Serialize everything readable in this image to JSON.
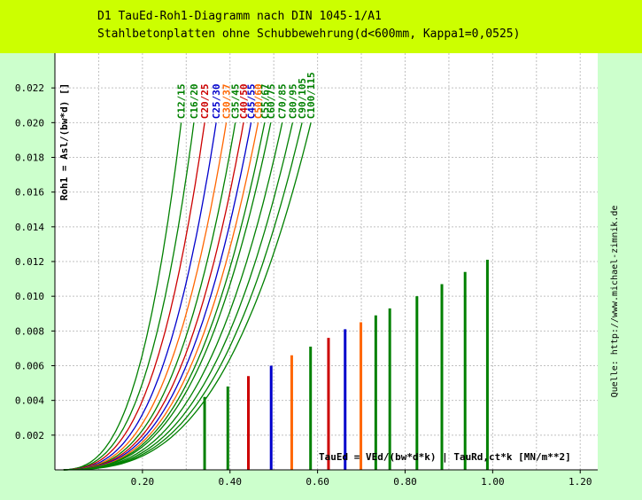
{
  "header": {
    "line1": "D1 TauEd-Roh1-Diagramm nach DIN 1045-1/A1",
    "line2": "Stahlbetonplatten ohne Schubbewehrung(d<600mm, Kappa1=0,0525)"
  },
  "source_note": "Quelle: http://www.michael-zimnik.de",
  "colors": {
    "header_bg": "#ccff00",
    "side_bg": "#ccffcc",
    "plot_bg": "#ffffff",
    "grid": "#c0c0c0",
    "green": "#008000",
    "red": "#cc0000",
    "blue": "#0000cc",
    "orange": "#ff6600"
  },
  "chart_data": {
    "type": "line",
    "title": "D1 TauEd-Roh1-Diagramm nach DIN 1045-1/A1",
    "subtitle": "Stahlbetonplatten ohne Schubbewehrung(d<600mm, Kappa1=0,0525)",
    "xlabel": "TauEd = VEd/(bw*d*k) | TauRd,ct*k [MN/m**2]",
    "ylabel": "Roh1 = Asl/(bw*d) []",
    "xlim": [
      0,
      1.24
    ],
    "ylim": [
      0,
      0.024
    ],
    "x_ticks": [
      {
        "v": 0.2,
        "label": "0.20"
      },
      {
        "v": 0.4,
        "label": "0.40"
      },
      {
        "v": 0.6,
        "label": "0.60"
      },
      {
        "v": 0.8,
        "label": "0.80"
      },
      {
        "v": 1.0,
        "label": "1.00"
      },
      {
        "v": 1.2,
        "label": "1.20"
      }
    ],
    "y_ticks": [
      {
        "v": 0.002,
        "label": "0.002"
      },
      {
        "v": 0.004,
        "label": "0.004"
      },
      {
        "v": 0.006,
        "label": "0.006"
      },
      {
        "v": 0.008,
        "label": "0.008"
      },
      {
        "v": 0.01,
        "label": "0.010"
      },
      {
        "v": 0.012,
        "label": "0.012"
      },
      {
        "v": 0.014,
        "label": "0.014"
      },
      {
        "v": 0.016,
        "label": "0.016"
      },
      {
        "v": 0.018,
        "label": "0.018"
      },
      {
        "v": 0.02,
        "label": "0.020"
      },
      {
        "v": 0.022,
        "label": "0.022"
      }
    ],
    "curve_ymax": 0.02,
    "grid": true,
    "series": [
      {
        "name": "C12/15",
        "fck": 12,
        "color": "#008000",
        "bar_x": 0.342,
        "bar_y": 0.0042
      },
      {
        "name": "C16/20",
        "fck": 16,
        "color": "#008000",
        "bar_x": 0.395,
        "bar_y": 0.0048
      },
      {
        "name": "C20/25",
        "fck": 20,
        "color": "#cc0000",
        "bar_x": 0.442,
        "bar_y": 0.0054
      },
      {
        "name": "C25/30",
        "fck": 25,
        "color": "#0000cc",
        "bar_x": 0.494,
        "bar_y": 0.006
      },
      {
        "name": "C30/37",
        "fck": 30,
        "color": "#ff6600",
        "bar_x": 0.541,
        "bar_y": 0.0066
      },
      {
        "name": "C35/45",
        "fck": 35,
        "color": "#008000",
        "bar_x": 0.584,
        "bar_y": 0.0071
      },
      {
        "name": "C40/50",
        "fck": 40,
        "color": "#cc0000",
        "bar_x": 0.625,
        "bar_y": 0.0076
      },
      {
        "name": "C45/55",
        "fck": 45,
        "color": "#0000cc",
        "bar_x": 0.663,
        "bar_y": 0.0081
      },
      {
        "name": "C50/60",
        "fck": 50,
        "color": "#ff6600",
        "bar_x": 0.699,
        "bar_y": 0.0085
      },
      {
        "name": "C55/67",
        "fck": 55,
        "color": "#008000",
        "bar_x": 0.733,
        "bar_y": 0.0089
      },
      {
        "name": "C60/75",
        "fck": 60,
        "color": "#008000",
        "bar_x": 0.765,
        "bar_y": 0.0093
      },
      {
        "name": "C70/85",
        "fck": 70,
        "color": "#008000",
        "bar_x": 0.827,
        "bar_y": 0.01
      },
      {
        "name": "C80/95",
        "fck": 80,
        "color": "#008000",
        "bar_x": 0.884,
        "bar_y": 0.0107
      },
      {
        "name": "C90/105",
        "fck": 90,
        "color": "#008000",
        "bar_x": 0.937,
        "bar_y": 0.0114
      },
      {
        "name": "C100/115",
        "fck": 100,
        "color": "#008000",
        "bar_x": 0.988,
        "bar_y": 0.0121
      }
    ]
  }
}
